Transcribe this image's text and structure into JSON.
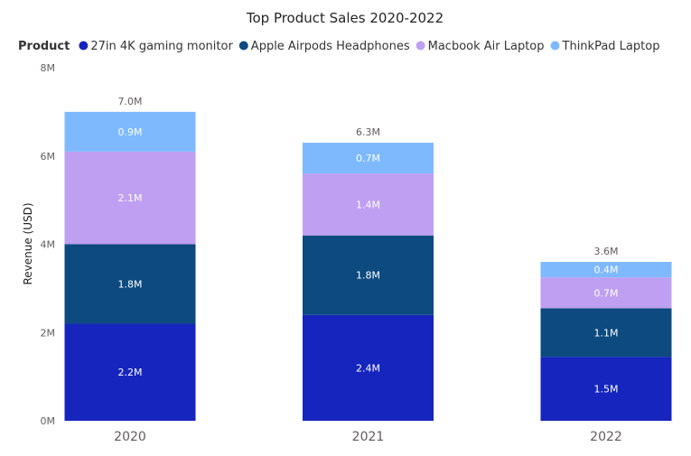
{
  "chart_data": {
    "type": "bar",
    "stacked": true,
    "title": "Top Product Sales 2020-2022",
    "legend_title": "Product",
    "legend_position": "top",
    "ylabel": "Revenue (USD)",
    "ylim": [
      0,
      8000000
    ],
    "yticks": [
      0,
      2000000,
      4000000,
      6000000,
      8000000
    ],
    "ytick_labels": [
      "0M",
      "2M",
      "4M",
      "6M",
      "8M"
    ],
    "categories": [
      "2020",
      "2021",
      "2022"
    ],
    "series": [
      {
        "name": "27in 4K gaming monitor",
        "color": "#1625bd",
        "values": [
          2200000,
          2400000,
          1450000
        ],
        "labels": [
          "2.2M",
          "2.4M",
          "1.5M"
        ]
      },
      {
        "name": "Apple Airpods Headphones",
        "color": "#0c4a80",
        "values": [
          1800000,
          1800000,
          1100000
        ],
        "labels": [
          "1.8M",
          "1.8M",
          "1.1M"
        ]
      },
      {
        "name": "Macbook Air Laptop",
        "color": "#bf9ff1",
        "values": [
          2100000,
          1400000,
          700000
        ],
        "labels": [
          "2.1M",
          "1.4M",
          "0.7M"
        ]
      },
      {
        "name": "ThinkPad Laptop",
        "color": "#7eb9fd",
        "values": [
          900000,
          700000,
          350000
        ],
        "labels": [
          "0.9M",
          "0.7M",
          "0.4M"
        ]
      }
    ],
    "totals": [
      "7.0M",
      "6.3M",
      "3.6M"
    ],
    "grid": false
  }
}
